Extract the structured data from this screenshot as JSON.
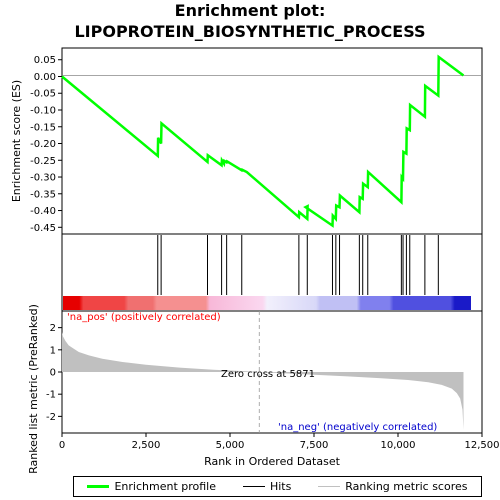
{
  "title": "Enrichment plot:\nLIPOPROTEIN_BIOSYNTHETIC_PROCESS",
  "colors": {
    "profile": "#00ff00",
    "hits": "#000000",
    "metric_fill": "#c0c0c0",
    "pos_label": "#ff0000",
    "neg_label": "#0000cc"
  },
  "legend": {
    "profile": "Enrichment profile",
    "hits": "Hits",
    "metric": "Ranking metric scores"
  },
  "chart_data": [
    {
      "type": "line",
      "name": "enrichment-profile",
      "ylabel": "Enrichment score (ES)",
      "xlim": [
        0,
        12000
      ],
      "ylim": [
        -0.47,
        0.085
      ],
      "yticks": [
        "0.05",
        "0.00",
        "-0.05",
        "-0.10",
        "-0.15",
        "-0.20",
        "-0.25",
        "-0.30",
        "-0.35",
        "-0.40",
        "-0.45"
      ],
      "ytick_values": [
        0.05,
        0.0,
        -0.05,
        -0.1,
        -0.15,
        -0.2,
        -0.25,
        -0.3,
        -0.35,
        -0.4,
        -0.45
      ],
      "x": [
        0,
        2850,
        2860,
        2950,
        2960,
        4330,
        4340,
        4750,
        4760,
        4820,
        4830,
        4900,
        4910,
        5350,
        5360,
        5500,
        7050,
        7060,
        7300,
        7310,
        7250,
        8050,
        8060,
        8150,
        8160,
        8260,
        8270,
        8850,
        8860,
        8950,
        8960,
        9100,
        9110,
        10100,
        10110,
        10150,
        10160,
        10250,
        10260,
        10350,
        10360,
        10800,
        10810,
        11200,
        11210,
        11950
      ],
      "y": [
        0.0,
        -0.237,
        -0.183,
        -0.2,
        -0.14,
        -0.255,
        -0.235,
        -0.265,
        -0.25,
        -0.26,
        -0.252,
        -0.256,
        -0.253,
        -0.28,
        -0.278,
        -0.285,
        -0.42,
        -0.405,
        -0.425,
        -0.387,
        -0.39,
        -0.445,
        -0.415,
        -0.425,
        -0.385,
        -0.39,
        -0.355,
        -0.405,
        -0.36,
        -0.365,
        -0.32,
        -0.33,
        -0.285,
        -0.375,
        -0.3,
        -0.305,
        -0.225,
        -0.23,
        -0.155,
        -0.16,
        -0.085,
        -0.12,
        -0.028,
        -0.057,
        0.058,
        0.003
      ]
    },
    {
      "type": "hits",
      "name": "hits",
      "x": [
        2850,
        2950,
        4330,
        4750,
        4900,
        5350,
        7050,
        7300,
        8050,
        8150,
        8260,
        8850,
        8950,
        9100,
        10100,
        10150,
        10250,
        10350,
        10800,
        11200
      ]
    },
    {
      "type": "area",
      "name": "ranking-metric",
      "xlabel": "Rank in Ordered Dataset",
      "ylabel": "Ranked list metric (PreRanked)",
      "xlim": [
        0,
        12500
      ],
      "ylim": [
        -2.75,
        2.75
      ],
      "xticks": [
        "0",
        "2,500",
        "5,000",
        "7,500",
        "10,000",
        "12,500"
      ],
      "xtick_values": [
        0,
        2500,
        5000,
        7500,
        10000,
        12500
      ],
      "yticks": [
        "2",
        "1",
        "0",
        "-1",
        "-2"
      ],
      "ytick_values": [
        2,
        1,
        0,
        -1,
        -2
      ],
      "x": [
        0,
        30,
        100,
        200,
        350,
        500,
        800,
        1200,
        1800,
        2500,
        3500,
        4500,
        5500,
        5871,
        6500,
        7500,
        8500,
        9500,
        10300,
        10900,
        11300,
        11600,
        11750,
        11850,
        11920,
        11950
      ],
      "y": [
        1.8,
        1.6,
        1.4,
        1.2,
        1.05,
        0.9,
        0.75,
        0.6,
        0.45,
        0.33,
        0.2,
        0.1,
        0.03,
        0.0,
        -0.05,
        -0.12,
        -0.2,
        -0.28,
        -0.36,
        -0.46,
        -0.58,
        -0.75,
        -0.95,
        -1.2,
        -1.7,
        -2.6
      ],
      "zero_cross": 5871,
      "zero_cross_text": "Zero cross at 5871",
      "pos_text": "'na_pos' (positively correlated)",
      "neg_text": "'na_neg' (negatively correlated)"
    }
  ]
}
